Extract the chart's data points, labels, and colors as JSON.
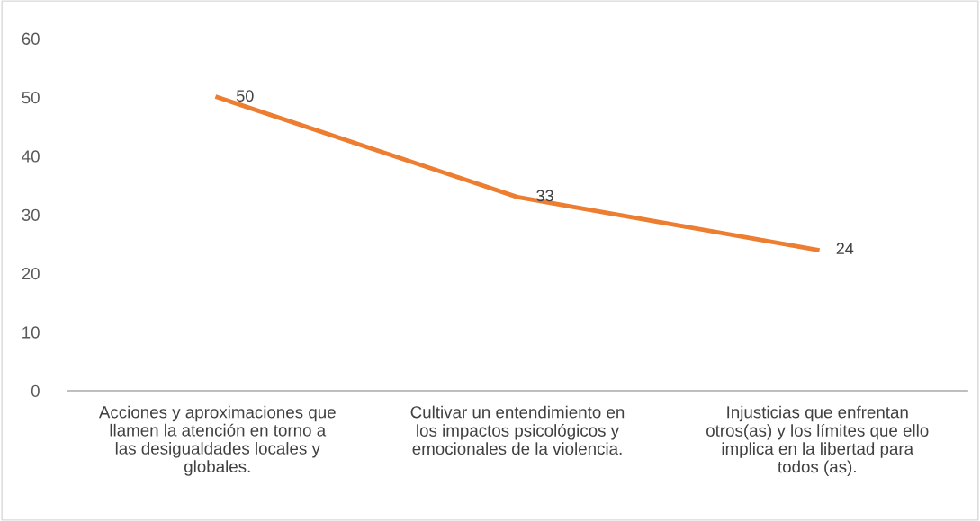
{
  "chart_data": {
    "type": "line",
    "categories": [
      "Acciones y aproximaciones que\nllamen la atención en torno a\nlas desigualdades locales y\nglobales.",
      "Cultivar un entendimiento en\nlos impactos psicológicos y\nemocionales de la violencia.",
      "Injusticias que enfrentan\notros(as) y los límites que ello\nimplica en la libertad para\ntodos (as)."
    ],
    "series": [
      {
        "color": "#ed7d31",
        "values": [
          50,
          33,
          24
        ]
      }
    ],
    "ylim": [
      0,
      60
    ],
    "yticks": [
      0,
      10,
      20,
      30,
      40,
      50,
      60
    ],
    "data_labels": true,
    "grid": false,
    "legend": false,
    "marker": "none",
    "line_style": "solid"
  }
}
